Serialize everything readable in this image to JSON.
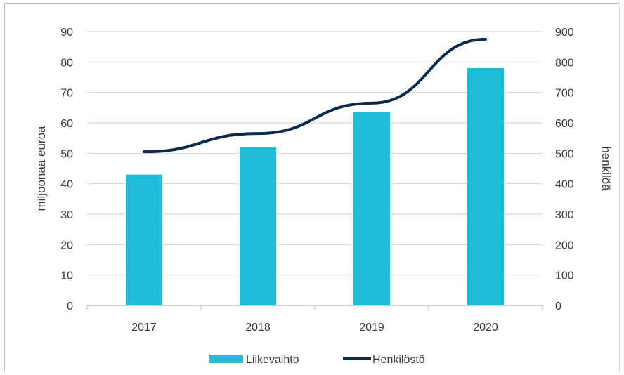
{
  "chart_data": {
    "type": "bar",
    "categories": [
      "2017",
      "2018",
      "2019",
      "2020"
    ],
    "series": [
      {
        "name": "Liikevaihto",
        "type": "bar",
        "axis": "left",
        "color": "#21bcd8",
        "values": [
          43,
          52,
          63.5,
          78
        ]
      },
      {
        "name": "Henkilöstö",
        "type": "line",
        "axis": "right",
        "color": "#0c2a4c",
        "values": [
          505,
          565,
          665,
          875
        ]
      }
    ],
    "ylabel": "miljoonaa euroa",
    "ylim": [
      0,
      90
    ],
    "y_ticks": [
      "0",
      "10",
      "20",
      "30",
      "40",
      "50",
      "60",
      "70",
      "80",
      "90"
    ],
    "y2label": "henkilöä",
    "y2lim": [
      0,
      900
    ],
    "y2_ticks": [
      "0",
      "100",
      "200",
      "300",
      "400",
      "500",
      "600",
      "700",
      "800",
      "900"
    ],
    "grid": true,
    "legend_position": "bottom"
  }
}
